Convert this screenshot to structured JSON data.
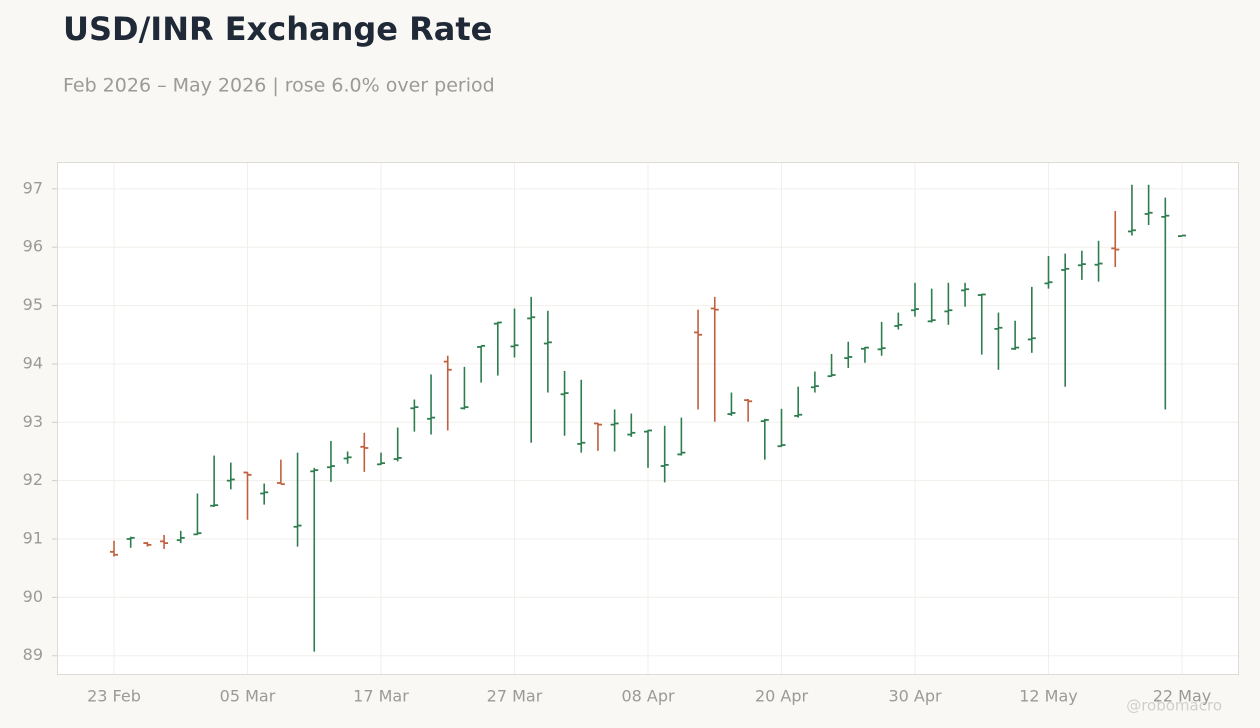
{
  "chart_data": {
    "type": "ohlc",
    "title": "USD/INR Exchange Rate",
    "subtitle": "Feb 2026 – May 2026 | rose 6.0% over period",
    "watermark": "@robomacro",
    "categories": [
      "23 Feb",
      null,
      null,
      null,
      null,
      null,
      null,
      null,
      "05 Mar",
      null,
      null,
      null,
      null,
      null,
      null,
      null,
      "17 Mar",
      null,
      null,
      null,
      null,
      null,
      null,
      null,
      "27 Mar",
      null,
      null,
      null,
      null,
      null,
      null,
      null,
      "08 Apr",
      null,
      null,
      null,
      null,
      null,
      null,
      null,
      "20 Apr",
      null,
      null,
      null,
      null,
      null,
      null,
      null,
      "30 Apr",
      null,
      null,
      null,
      null,
      null,
      null,
      null,
      "12 May",
      null,
      null,
      null,
      null,
      null,
      null,
      null,
      "22 May"
    ],
    "open": [
      90.78,
      91.0,
      90.93,
      90.96,
      90.98,
      91.08,
      91.57,
      92.0,
      92.14,
      91.78,
      91.96,
      91.21,
      92.16,
      92.23,
      92.38,
      92.58,
      92.28,
      92.37,
      93.24,
      93.06,
      94.04,
      93.24,
      94.29,
      94.69,
      94.3,
      94.78,
      94.35,
      93.48,
      92.63,
      92.98,
      92.96,
      92.79,
      92.84,
      92.25,
      92.45,
      94.54,
      94.95,
      93.14,
      93.38,
      93.02,
      92.59,
      93.11,
      93.6,
      93.79,
      94.1,
      94.26,
      94.25,
      94.65,
      94.92,
      94.73,
      94.9,
      95.26,
      95.18,
      94.6,
      94.26,
      94.42,
      95.38,
      95.61,
      95.69,
      95.7,
      95.98,
      96.27,
      96.57,
      96.52,
      96.19
    ],
    "high": [
      90.97,
      91.04,
      90.95,
      91.07,
      91.14,
      91.78,
      92.43,
      92.31,
      92.15,
      91.95,
      92.36,
      92.48,
      92.22,
      92.68,
      92.5,
      92.82,
      92.48,
      92.91,
      93.39,
      93.82,
      94.14,
      93.95,
      94.31,
      94.72,
      94.95,
      95.15,
      94.91,
      93.88,
      93.73,
      92.99,
      93.22,
      93.15,
      92.87,
      92.94,
      93.08,
      94.93,
      95.15,
      93.51,
      93.4,
      93.06,
      93.23,
      93.61,
      93.87,
      94.17,
      94.38,
      94.29,
      94.72,
      94.88,
      95.39,
      95.29,
      95.39,
      95.39,
      95.2,
      94.88,
      94.74,
      95.32,
      95.85,
      95.89,
      95.94,
      96.11,
      96.62,
      97.07,
      97.07,
      96.85,
      96.2
    ],
    "low": [
      90.7,
      90.85,
      90.87,
      90.83,
      90.93,
      91.07,
      91.55,
      91.85,
      91.33,
      91.59,
      91.94,
      90.87,
      89.07,
      91.98,
      92.29,
      92.15,
      92.27,
      92.33,
      92.84,
      92.79,
      92.86,
      93.22,
      93.68,
      93.8,
      94.11,
      92.65,
      93.51,
      92.77,
      92.48,
      92.51,
      92.5,
      92.75,
      92.22,
      91.97,
      92.43,
      93.22,
      93.01,
      93.11,
      93.01,
      92.36,
      92.58,
      93.08,
      93.51,
      93.78,
      93.93,
      94.02,
      94.14,
      94.59,
      94.81,
      94.71,
      94.67,
      94.98,
      94.16,
      93.9,
      94.24,
      94.19,
      95.29,
      93.61,
      95.44,
      95.41,
      95.66,
      96.2,
      96.38,
      93.22,
      96.19
    ],
    "close": [
      90.73,
      91.02,
      90.9,
      90.93,
      91.02,
      91.1,
      91.58,
      92.02,
      92.1,
      91.8,
      91.94,
      91.23,
      92.18,
      92.25,
      92.4,
      92.56,
      92.3,
      92.39,
      93.26,
      93.08,
      93.9,
      93.26,
      94.31,
      94.71,
      94.32,
      94.8,
      94.37,
      93.5,
      92.65,
      92.96,
      92.98,
      92.82,
      92.86,
      92.27,
      92.48,
      94.5,
      94.93,
      93.16,
      93.36,
      93.04,
      92.61,
      93.13,
      93.62,
      93.81,
      94.12,
      94.28,
      94.27,
      94.67,
      94.94,
      94.75,
      94.92,
      95.28,
      95.19,
      94.62,
      94.28,
      94.44,
      95.4,
      95.63,
      95.71,
      95.72,
      95.96,
      96.29,
      96.59,
      96.54,
      96.2
    ],
    "up_color": "#2e7d4f",
    "down_color": "#c0603f",
    "ylim": [
      88.67,
      97.46
    ],
    "yticks": [
      89,
      90,
      91,
      92,
      93,
      94,
      95,
      96,
      97
    ],
    "grid": true
  }
}
